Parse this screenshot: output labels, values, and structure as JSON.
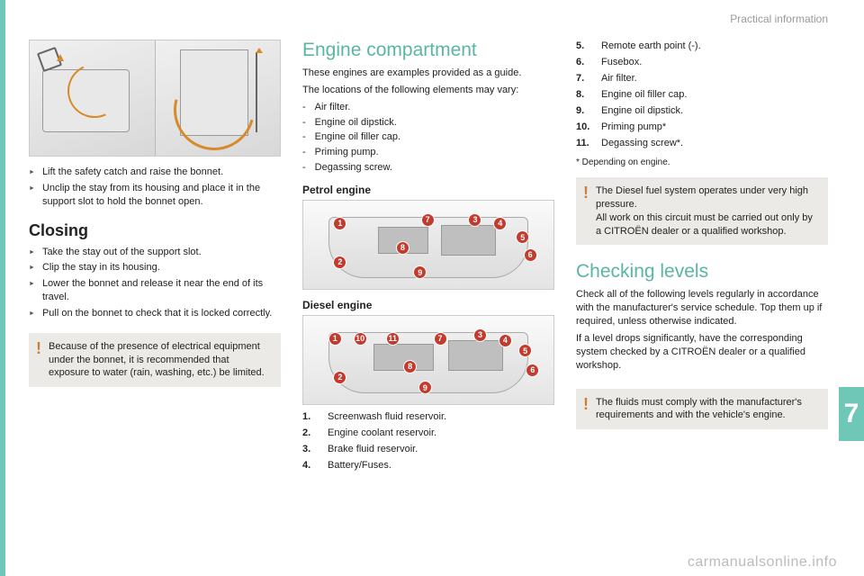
{
  "header": {
    "section": "Practical information"
  },
  "page_tab": "7",
  "col1": {
    "steps_after_fig": [
      "Lift the safety catch and raise the bonnet.",
      "Unclip the stay from its housing and place it in the support slot to hold the bonnet open."
    ],
    "closing_title": "Closing",
    "closing_steps": [
      "Take the stay out of the support slot.",
      "Clip the stay in its housing.",
      "Lower the bonnet and release it near the end of its travel.",
      "Pull on the bonnet to check that it is locked correctly."
    ],
    "warning": "Because of the presence of electrical equipment under the bonnet, it is recommended that exposure to water (rain, washing, etc.) be limited."
  },
  "col2": {
    "title": "Engine compartment",
    "intro1": "These engines are examples provided as a guide.",
    "intro2": "The locations of the following elements may vary:",
    "vary_items": [
      "Air filter.",
      "Engine oil dipstick.",
      "Engine oil filler cap.",
      "Priming pump.",
      "Degassing screw."
    ],
    "petrol_title": "Petrol engine",
    "diesel_title": "Diesel engine",
    "legend": [
      {
        "n": "1.",
        "t": "Screenwash fluid reservoir."
      },
      {
        "n": "2.",
        "t": "Engine coolant reservoir."
      },
      {
        "n": "3.",
        "t": "Brake fluid reservoir."
      },
      {
        "n": "4.",
        "t": "Battery/Fuses."
      }
    ],
    "petrol_markers": [
      {
        "l": "1",
        "x": 12,
        "y": 18
      },
      {
        "l": "2",
        "x": 12,
        "y": 62
      },
      {
        "l": "3",
        "x": 66,
        "y": 14
      },
      {
        "l": "4",
        "x": 76,
        "y": 18
      },
      {
        "l": "5",
        "x": 85,
        "y": 34
      },
      {
        "l": "6",
        "x": 88,
        "y": 54
      },
      {
        "l": "7",
        "x": 47,
        "y": 14
      },
      {
        "l": "8",
        "x": 37,
        "y": 46
      },
      {
        "l": "9",
        "x": 44,
        "y": 74
      }
    ],
    "diesel_markers": [
      {
        "l": "1",
        "x": 10,
        "y": 18
      },
      {
        "l": "10",
        "x": 20,
        "y": 18
      },
      {
        "l": "11",
        "x": 33,
        "y": 18
      },
      {
        "l": "7",
        "x": 52,
        "y": 18
      },
      {
        "l": "3",
        "x": 68,
        "y": 14
      },
      {
        "l": "4",
        "x": 78,
        "y": 20
      },
      {
        "l": "5",
        "x": 86,
        "y": 32
      },
      {
        "l": "6",
        "x": 89,
        "y": 54
      },
      {
        "l": "2",
        "x": 12,
        "y": 62
      },
      {
        "l": "8",
        "x": 40,
        "y": 50
      },
      {
        "l": "9",
        "x": 46,
        "y": 74
      }
    ]
  },
  "col3": {
    "legend_cont": [
      {
        "n": "5.",
        "t": "Remote earth point (-)."
      },
      {
        "n": "6.",
        "t": "Fusebox."
      },
      {
        "n": "7.",
        "t": "Air filter."
      },
      {
        "n": "8.",
        "t": "Engine oil filler cap."
      },
      {
        "n": "9.",
        "t": "Engine oil dipstick."
      },
      {
        "n": "10.",
        "t": "Priming pump*"
      },
      {
        "n": "11.",
        "t": "Degassing screw*."
      }
    ],
    "footnote": "*  Depending on engine.",
    "warning1a": "The Diesel fuel system operates under very high pressure.",
    "warning1b": "All work on this circuit must be carried out only by a CITROËN dealer or a qualified workshop.",
    "levels_title": "Checking levels",
    "levels_p1": "Check all of the following levels regularly in accordance with the manufacturer's service schedule. Top them up if required, unless otherwise indicated.",
    "levels_p2": "If a level drops significantly, have the corresponding system checked by a CITROËN dealer or a qualified workshop.",
    "warning2": "The fluids must comply with the manufacturer's requirements and with the vehicle's engine."
  },
  "watermark": "carmanualsonline.info",
  "colors": {
    "teal": "#6fc7b8",
    "marker": "#c23b2e",
    "warn_bg": "#eceae7",
    "bang": "#c9803a"
  }
}
